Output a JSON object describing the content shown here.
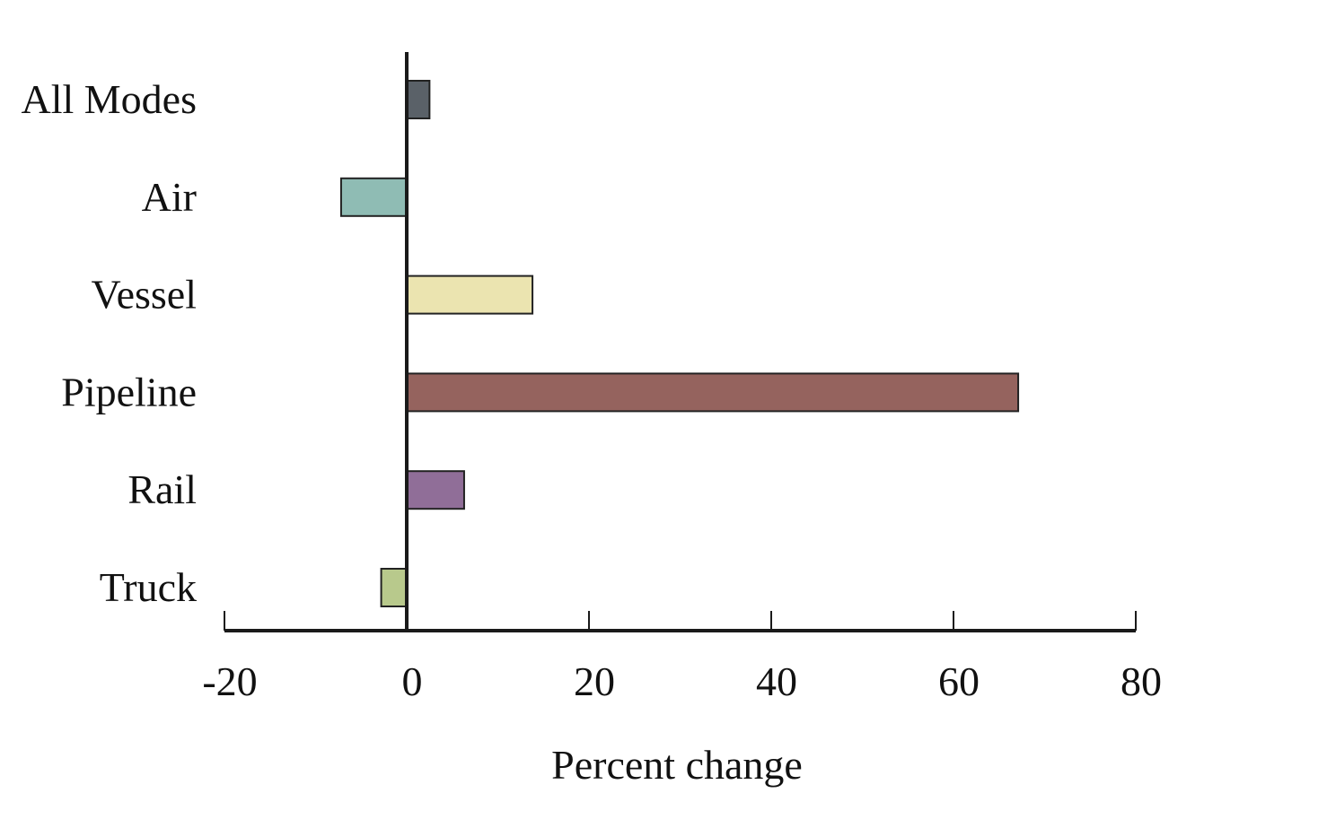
{
  "chart_data": {
    "type": "bar",
    "orientation": "horizontal",
    "categories": [
      "All Modes",
      "Air",
      "Vessel",
      "Pipeline",
      "Rail",
      "Truck"
    ],
    "values": [
      2.5,
      -7.2,
      13.8,
      67.1,
      6.3,
      -2.8
    ],
    "colors": [
      "#5a6168",
      "#8fbcb4",
      "#ebe4b0",
      "#95635e",
      "#906e98",
      "#b8c98c"
    ],
    "xlabel": "Percent change",
    "xlim": [
      -20,
      80
    ],
    "xticks": [
      -20,
      0,
      20,
      40,
      60,
      80
    ],
    "xtick_labels": [
      "-20",
      "0",
      "20",
      "40",
      "60",
      "80"
    ],
    "grid": false,
    "legend": "none"
  }
}
